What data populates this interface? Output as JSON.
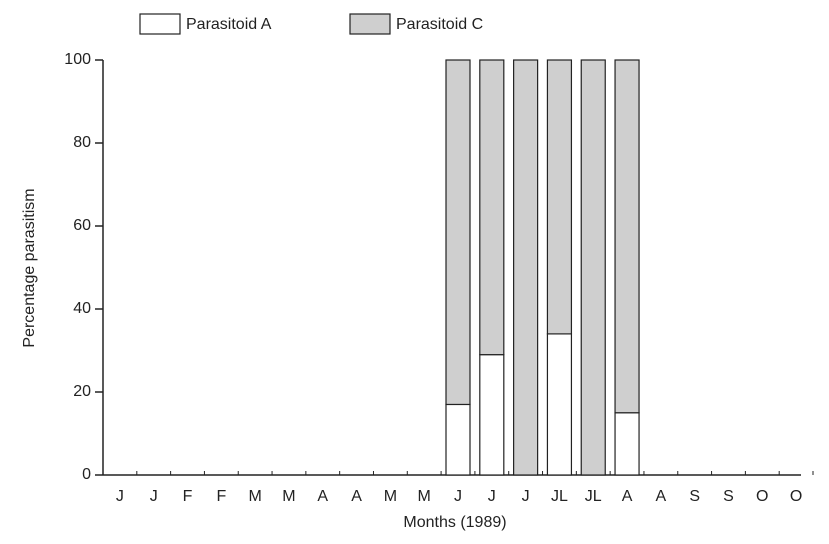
{
  "chart_data": {
    "type": "stacked-bar",
    "xlabel": "Months (1989)",
    "ylabel": "Percentage parasitism",
    "categories": [
      "J",
      "J",
      "F",
      "F",
      "M",
      "M",
      "A",
      "A",
      "M",
      "M",
      "J",
      "J",
      "J",
      "JL",
      "JL",
      "A",
      "A",
      "S",
      "S",
      "O",
      "O"
    ],
    "series": [
      {
        "name": "Parasitoid A",
        "color": "#ffffff",
        "values": [
          0,
          0,
          0,
          0,
          0,
          0,
          0,
          0,
          0,
          0,
          17,
          29,
          0,
          34,
          0,
          15,
          0,
          0,
          0,
          0,
          0
        ]
      },
      {
        "name": "Parasitoid C",
        "color": "#cfcfcf",
        "values": [
          0,
          0,
          0,
          0,
          0,
          0,
          0,
          0,
          0,
          0,
          83,
          71,
          100,
          66,
          100,
          85,
          0,
          0,
          0,
          0,
          0
        ]
      }
    ],
    "ylim": [
      0,
      100
    ],
    "yticks": [
      0,
      20,
      40,
      60,
      80,
      100
    ]
  }
}
